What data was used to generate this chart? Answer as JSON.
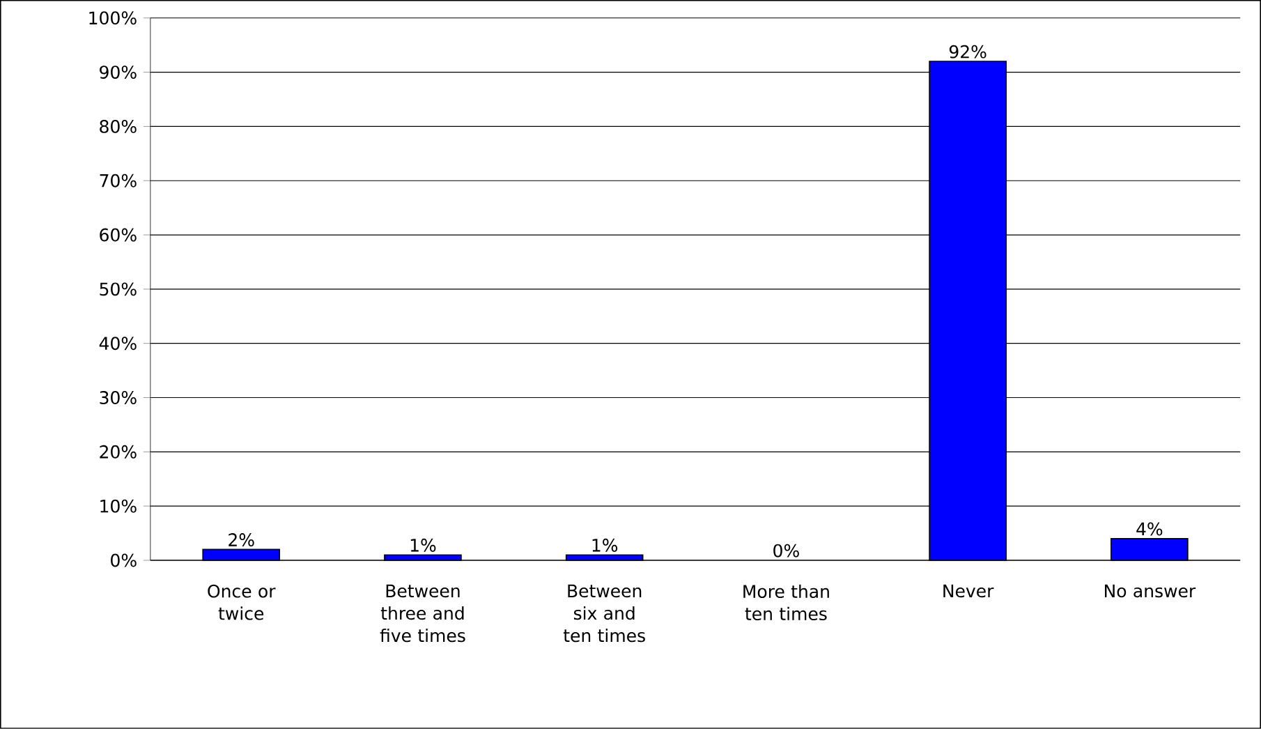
{
  "chart_data": {
    "type": "bar",
    "categories": [
      "Once or twice",
      "Between three and five times",
      "Between six and ten times",
      "More than ten times",
      "Never",
      "No answer"
    ],
    "values": [
      2,
      1,
      1,
      0,
      92,
      4
    ],
    "value_labels": [
      "2%",
      "1%",
      "1%",
      "0%",
      "92%",
      "4%"
    ],
    "color": "#0000ff",
    "ylim": [
      0,
      100
    ],
    "yticks": [
      {
        "value": 0,
        "label": "0%"
      },
      {
        "value": 10,
        "label": "10%"
      },
      {
        "value": 20,
        "label": "20%"
      },
      {
        "value": 30,
        "label": "30%"
      },
      {
        "value": 40,
        "label": "40%"
      },
      {
        "value": 50,
        "label": "50%"
      },
      {
        "value": 60,
        "label": "60%"
      },
      {
        "value": 70,
        "label": "70%"
      },
      {
        "value": 80,
        "label": "80%"
      },
      {
        "value": 90,
        "label": "90%"
      },
      {
        "value": 100,
        "label": "100%"
      }
    ],
    "grid": "y"
  }
}
